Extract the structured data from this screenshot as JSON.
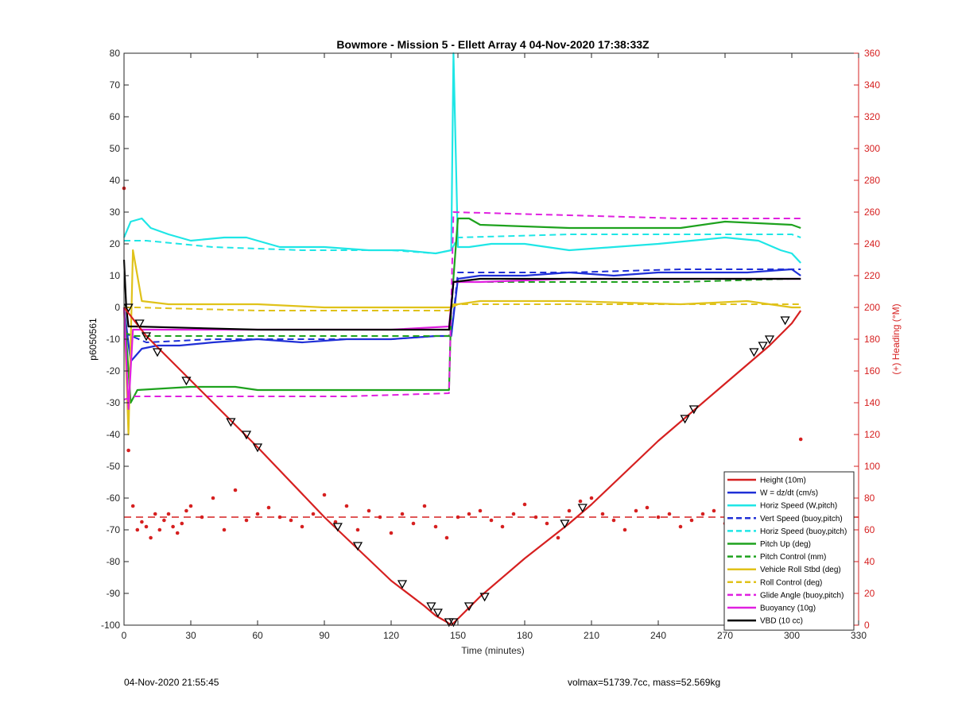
{
  "chart_data": {
    "type": "line",
    "title": "Bowmore - Mission 5 - Ellett Array 4 04-Nov-2020 17:38:33Z",
    "xlabel": "Time (minutes)",
    "ylabel": "p6050561",
    "y2label": "(+) Heading (°M)",
    "xlim": [
      0,
      330
    ],
    "ylim": [
      -100,
      80
    ],
    "y2lim": [
      0,
      360
    ],
    "xticks": [
      "0",
      "30",
      "60",
      "90",
      "120",
      "150",
      "180",
      "210",
      "240",
      "270",
      "300",
      "330"
    ],
    "yticks": [
      "-100",
      "-90",
      "-80",
      "-70",
      "-60",
      "-50",
      "-40",
      "-30",
      "-20",
      "-10",
      "0",
      "10",
      "20",
      "30",
      "40",
      "50",
      "60",
      "70",
      "80"
    ],
    "y2ticks": [
      "0",
      "20",
      "40",
      "60",
      "80",
      "100",
      "120",
      "140",
      "160",
      "180",
      "200",
      "220",
      "240",
      "260",
      "280",
      "300",
      "320",
      "340",
      "360"
    ],
    "legend_position": "bottom-right",
    "colors": {
      "right_axis": "#d62020"
    },
    "series": [
      {
        "name": "Height (10m)",
        "color": "#d62020",
        "style": "solid",
        "x": [
          0,
          10,
          20,
          30,
          50,
          60,
          90,
          105,
          120,
          135,
          140,
          145,
          147,
          150,
          160,
          180,
          200,
          210,
          240,
          260,
          270,
          290,
          300,
          304
        ],
        "y": [
          0,
          -9,
          -16,
          -23,
          -37,
          -44,
          -66,
          -76,
          -86,
          -94,
          -97,
          -99,
          -100,
          -98,
          -91,
          -79,
          -68,
          -62,
          -42,
          -30,
          -24,
          -12,
          -5,
          -1
        ]
      },
      {
        "name": "W = dz/dt (cm/s)",
        "color": "#1f2fd6",
        "style": "solid",
        "x": [
          0,
          3,
          8,
          15,
          25,
          40,
          60,
          80,
          100,
          120,
          140,
          145,
          147,
          150,
          160,
          180,
          200,
          220,
          240,
          260,
          280,
          300,
          304
        ],
        "y": [
          0,
          -17,
          -13,
          -12,
          -12,
          -11,
          -10,
          -11,
          -10,
          -10,
          -9,
          -9,
          -9,
          9,
          10,
          10,
          11,
          10,
          11,
          11,
          11,
          12,
          10
        ]
      },
      {
        "name": "Horiz Speed (W,pitch)",
        "color": "#1fe6e6",
        "style": "solid",
        "x": [
          0,
          3,
          8,
          12,
          20,
          30,
          45,
          55,
          70,
          90,
          110,
          125,
          140,
          147,
          148,
          150,
          155,
          165,
          180,
          200,
          220,
          240,
          255,
          270,
          285,
          295,
          300,
          304
        ],
        "y": [
          22,
          27,
          28,
          25,
          23,
          21,
          22,
          22,
          19,
          19,
          18,
          18,
          17,
          18,
          80,
          19,
          19,
          20,
          20,
          18,
          19,
          20,
          21,
          22,
          21,
          18,
          17,
          14
        ]
      },
      {
        "name": "Vert Speed (buoy,pitch)",
        "color": "#1f2fd6",
        "style": "dashed",
        "x": [
          0,
          10,
          40,
          80,
          120,
          140,
          147,
          150,
          200,
          250,
          300,
          304
        ],
        "y": [
          -8,
          -11,
          -10,
          -10,
          -10,
          -9,
          -9,
          11,
          11,
          12,
          12,
          12
        ]
      },
      {
        "name": "Horiz Speed (buoy,pitch)",
        "color": "#1fe6e6",
        "style": "dashed",
        "x": [
          0,
          10,
          40,
          80,
          120,
          140,
          147,
          150,
          200,
          250,
          300,
          304
        ],
        "y": [
          21,
          21,
          19,
          18,
          18,
          17,
          18,
          22,
          23,
          23,
          23,
          22
        ]
      },
      {
        "name": "Pitch Up (deg)",
        "color": "#1ea21e",
        "style": "solid",
        "x": [
          0,
          3,
          6,
          30,
          50,
          60,
          90,
          120,
          140,
          146,
          147,
          150,
          155,
          160,
          200,
          250,
          270,
          300,
          304
        ],
        "y": [
          0,
          -30,
          -26,
          -25,
          -25,
          -26,
          -26,
          -26,
          -26,
          -26,
          0,
          28,
          28,
          26,
          25,
          25,
          27,
          26,
          25
        ]
      },
      {
        "name": "Pitch Control (mm)",
        "color": "#1ea21e",
        "style": "dashed",
        "x": [
          0,
          5,
          40,
          100,
          146,
          148,
          160,
          200,
          250,
          300,
          304
        ],
        "y": [
          -8,
          -9,
          -9,
          -9,
          -9,
          8,
          8,
          8,
          8,
          9,
          9
        ]
      },
      {
        "name": "Vehicle Roll Stbd (deg)",
        "color": "#e0c21a",
        "style": "solid",
        "x": [
          0,
          2,
          4,
          8,
          20,
          30,
          50,
          60,
          90,
          120,
          145,
          147,
          150,
          160,
          200,
          250,
          280,
          290,
          300,
          304
        ],
        "y": [
          0,
          -40,
          18,
          2,
          1,
          1,
          1,
          1,
          0,
          0,
          0,
          0,
          1,
          2,
          2,
          1,
          2,
          1,
          0,
          0
        ]
      },
      {
        "name": "Roll Control (deg)",
        "color": "#e0c21a",
        "style": "dashed",
        "x": [
          0,
          5,
          60,
          120,
          146,
          148,
          200,
          250,
          300,
          304
        ],
        "y": [
          0,
          0,
          -1,
          -1,
          -1,
          1,
          1,
          1,
          1,
          1
        ]
      },
      {
        "name": "Glide Angle (buoy,pitch)",
        "color": "#e020e0",
        "style": "dashed",
        "x": [
          0,
          5,
          40,
          100,
          146,
          148,
          200,
          250,
          300,
          304
        ],
        "y": [
          -29,
          -28,
          -28,
          -28,
          -27,
          30,
          29,
          28,
          28,
          28
        ]
      },
      {
        "name": "Buoyancy (10g)",
        "color": "#e020e0",
        "style": "solid",
        "x": [
          0,
          2,
          4,
          10,
          60,
          120,
          146,
          148,
          160,
          200,
          250,
          300,
          304
        ],
        "y": [
          0,
          -32,
          -7,
          -7,
          -7,
          -7,
          -6,
          8,
          8,
          9,
          9,
          9,
          9
        ]
      },
      {
        "name": "VBD (10 cc)",
        "color": "#000000",
        "style": "solid",
        "x": [
          0,
          1,
          2,
          5,
          60,
          120,
          146,
          147,
          148,
          160,
          200,
          250,
          300,
          304
        ],
        "y": [
          15,
          0,
          -6,
          -6,
          -7,
          -7,
          -7,
          0,
          8,
          9,
          9,
          9,
          9,
          9
        ]
      }
    ],
    "heading_scatter": {
      "name": "Heading",
      "axis": "right",
      "color": "#d62020",
      "reference_line": 68,
      "x": [
        0,
        2,
        4,
        6,
        8,
        10,
        12,
        14,
        16,
        18,
        20,
        22,
        24,
        26,
        28,
        30,
        35,
        40,
        45,
        50,
        55,
        60,
        65,
        70,
        75,
        80,
        85,
        90,
        95,
        100,
        105,
        110,
        115,
        120,
        125,
        130,
        135,
        140,
        145,
        150,
        155,
        160,
        165,
        170,
        175,
        180,
        185,
        190,
        195,
        200,
        205,
        210,
        215,
        220,
        225,
        230,
        235,
        240,
        245,
        250,
        255,
        260,
        265,
        270,
        275,
        280,
        285,
        290,
        295,
        300,
        304
      ],
      "y": [
        275,
        110,
        75,
        60,
        65,
        62,
        55,
        70,
        60,
        66,
        70,
        62,
        58,
        64,
        72,
        75,
        68,
        80,
        60,
        85,
        66,
        70,
        74,
        68,
        66,
        62,
        70,
        82,
        65,
        75,
        60,
        72,
        68,
        58,
        70,
        64,
        75,
        62,
        55,
        68,
        70,
        72,
        66,
        62,
        70,
        76,
        68,
        64,
        55,
        72,
        78,
        80,
        70,
        66,
        60,
        72,
        74,
        68,
        70,
        62,
        66,
        70,
        72,
        64,
        68,
        70,
        60,
        58,
        66,
        70,
        117
      ]
    },
    "markers": {
      "x": [
        2,
        7,
        10,
        15,
        28,
        48,
        55,
        60,
        96,
        105,
        125,
        138,
        141,
        146,
        148,
        155,
        162,
        198,
        206,
        252,
        256,
        283,
        287,
        290,
        297
      ],
      "y": [
        0,
        -5,
        -9,
        -14,
        -23,
        -36,
        -40,
        -44,
        -69,
        -75,
        -87,
        -94,
        -96,
        -99,
        -99,
        -94,
        -91,
        -68,
        -63,
        -35,
        -32,
        -14,
        -12,
        -10,
        -4
      ]
    }
  },
  "footer": {
    "left": "04-Nov-2020 21:55:45",
    "right": "volmax=51739.7cc, mass=52.569kg"
  }
}
